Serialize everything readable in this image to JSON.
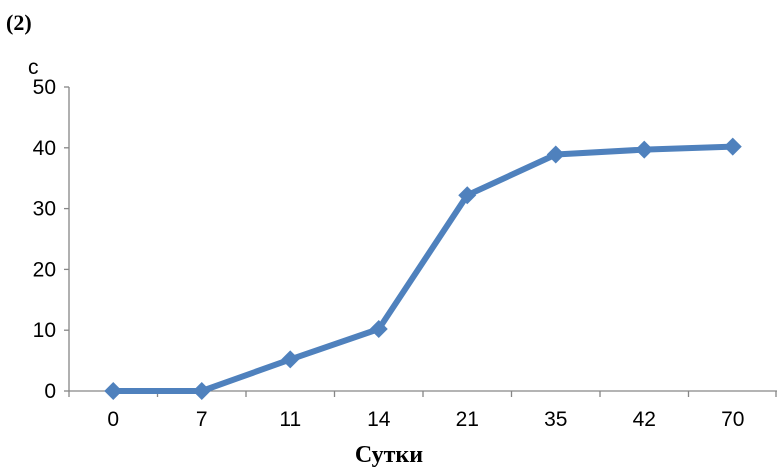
{
  "panel_label": "(2)",
  "colors": {
    "series": "#4F81BD",
    "axis": "#868686"
  },
  "chart_data": {
    "type": "line",
    "title": "",
    "xlabel": "Сутки",
    "ylabel": "",
    "ylabel_fragment": "с",
    "categories": [
      "0",
      "7",
      "11",
      "14",
      "21",
      "35",
      "42",
      "70"
    ],
    "series": [
      {
        "values": [
          0,
          0,
          5.2,
          10.2,
          32.2,
          38.9,
          39.7,
          40.2
        ],
        "marker": "diamond"
      }
    ],
    "ylim": [
      0,
      50
    ],
    "yticks": [
      0,
      10,
      20,
      30,
      40,
      50
    ],
    "grid": false,
    "legend": "none"
  }
}
